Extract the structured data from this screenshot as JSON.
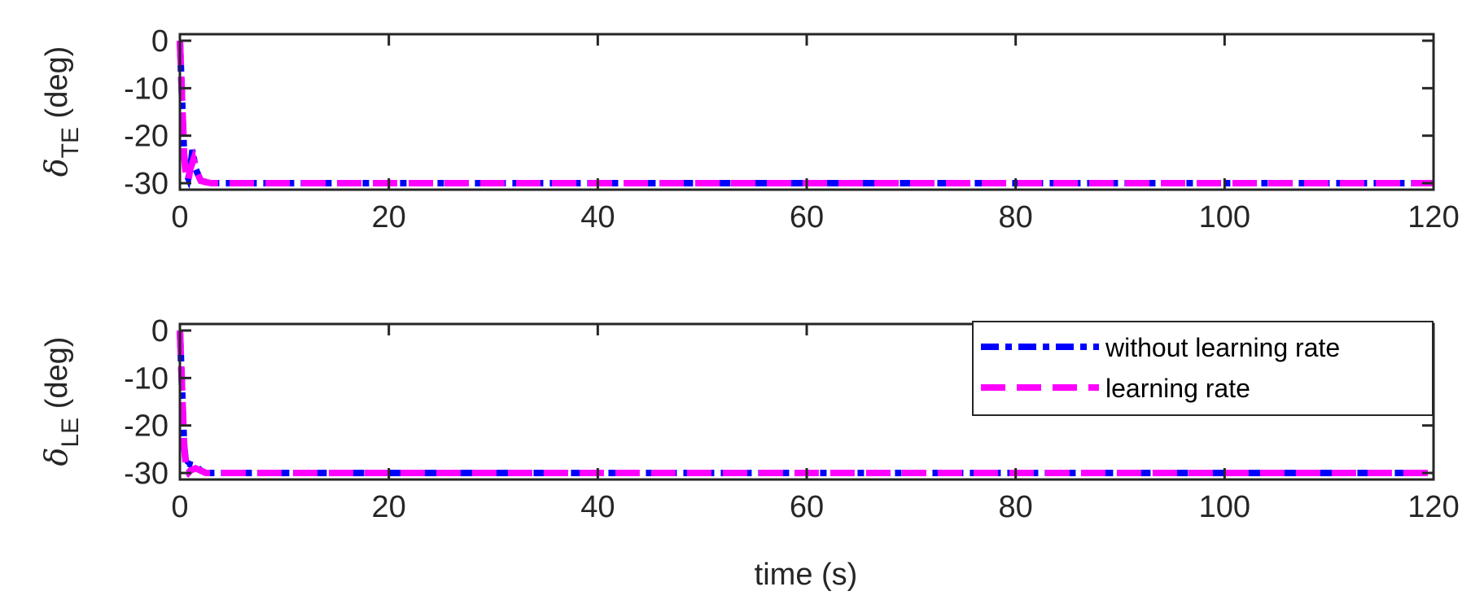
{
  "chart_data": [
    {
      "type": "line",
      "ylabel": "δ_TE (deg)",
      "ylabel_symbol": "δ",
      "ylabel_sub": "TE",
      "ylabel_unit": "(deg)",
      "xlabel": "",
      "xlim": [
        0,
        120
      ],
      "ylim": [
        -30,
        0
      ],
      "xticks": [
        "0",
        "20",
        "40",
        "60",
        "80",
        "100",
        "120"
      ],
      "yticks": [
        "0",
        "-10",
        "-20",
        "-30"
      ],
      "grid": false,
      "series": [
        {
          "name": "without learning rate",
          "color": "#0000ff",
          "style": "dashdot",
          "x": [
            0,
            0.2,
            0.4,
            0.6,
            0.8,
            1.0,
            1.2,
            1.5,
            2.0,
            3.0,
            5.0,
            10,
            20,
            40,
            60,
            80,
            100,
            120
          ],
          "y": [
            0,
            -12,
            -24,
            -28,
            -29,
            -27,
            -23,
            -27,
            -29.5,
            -30,
            -30,
            -30,
            -30,
            -30,
            -30,
            -30,
            -30,
            -30
          ]
        },
        {
          "name": "learning rate",
          "color": "#ff00ff",
          "style": "dashed",
          "x": [
            0,
            0.2,
            0.4,
            0.6,
            0.8,
            1.0,
            1.3,
            1.6,
            2.0,
            2.5,
            3.0,
            5.0,
            10,
            20,
            40,
            60,
            80,
            100,
            120
          ],
          "y": [
            0,
            -12,
            -24,
            -29,
            -29.5,
            -27,
            -25,
            -27.5,
            -29.5,
            -29.8,
            -30,
            -30,
            -30,
            -30,
            -30,
            -30,
            -30,
            -30,
            -30
          ]
        }
      ]
    },
    {
      "type": "line",
      "ylabel": "δ_LE (deg)",
      "ylabel_symbol": "δ",
      "ylabel_sub": "LE",
      "ylabel_unit": "(deg)",
      "xlabel": "time (s)",
      "xlim": [
        0,
        120
      ],
      "ylim": [
        -30,
        0
      ],
      "xticks": [
        "0",
        "20",
        "40",
        "60",
        "80",
        "100",
        "120"
      ],
      "yticks": [
        "0",
        "-10",
        "-20",
        "-30"
      ],
      "grid": false,
      "legend": {
        "position": "upper-right",
        "entries": [
          "without learning rate",
          "learning rate"
        ]
      },
      "series": [
        {
          "name": "without learning rate",
          "color": "#0000ff",
          "style": "dashdot",
          "x": [
            0,
            0.2,
            0.4,
            0.6,
            0.8,
            1.0,
            1.5,
            2.0,
            2.5,
            3.0,
            5.0,
            10,
            20,
            40,
            60,
            80,
            100,
            120
          ],
          "y": [
            0,
            -12,
            -24,
            -28.5,
            -28,
            -28.2,
            -28.5,
            -29.5,
            -30,
            -30,
            -30,
            -30,
            -30,
            -30,
            -30,
            -30,
            -30,
            -30
          ]
        },
        {
          "name": "learning rate",
          "color": "#ff00ff",
          "style": "dashed",
          "x": [
            0,
            0.2,
            0.4,
            0.6,
            0.8,
            1.0,
            1.5,
            2.0,
            2.5,
            3.0,
            5.0,
            10,
            20,
            40,
            60,
            80,
            100,
            120
          ],
          "y": [
            0,
            -12,
            -24,
            -29.5,
            -30,
            -29.5,
            -29,
            -29.5,
            -30,
            -30,
            -30,
            -30,
            -30,
            -30,
            -30,
            -30,
            -30,
            -30
          ]
        }
      ]
    }
  ]
}
